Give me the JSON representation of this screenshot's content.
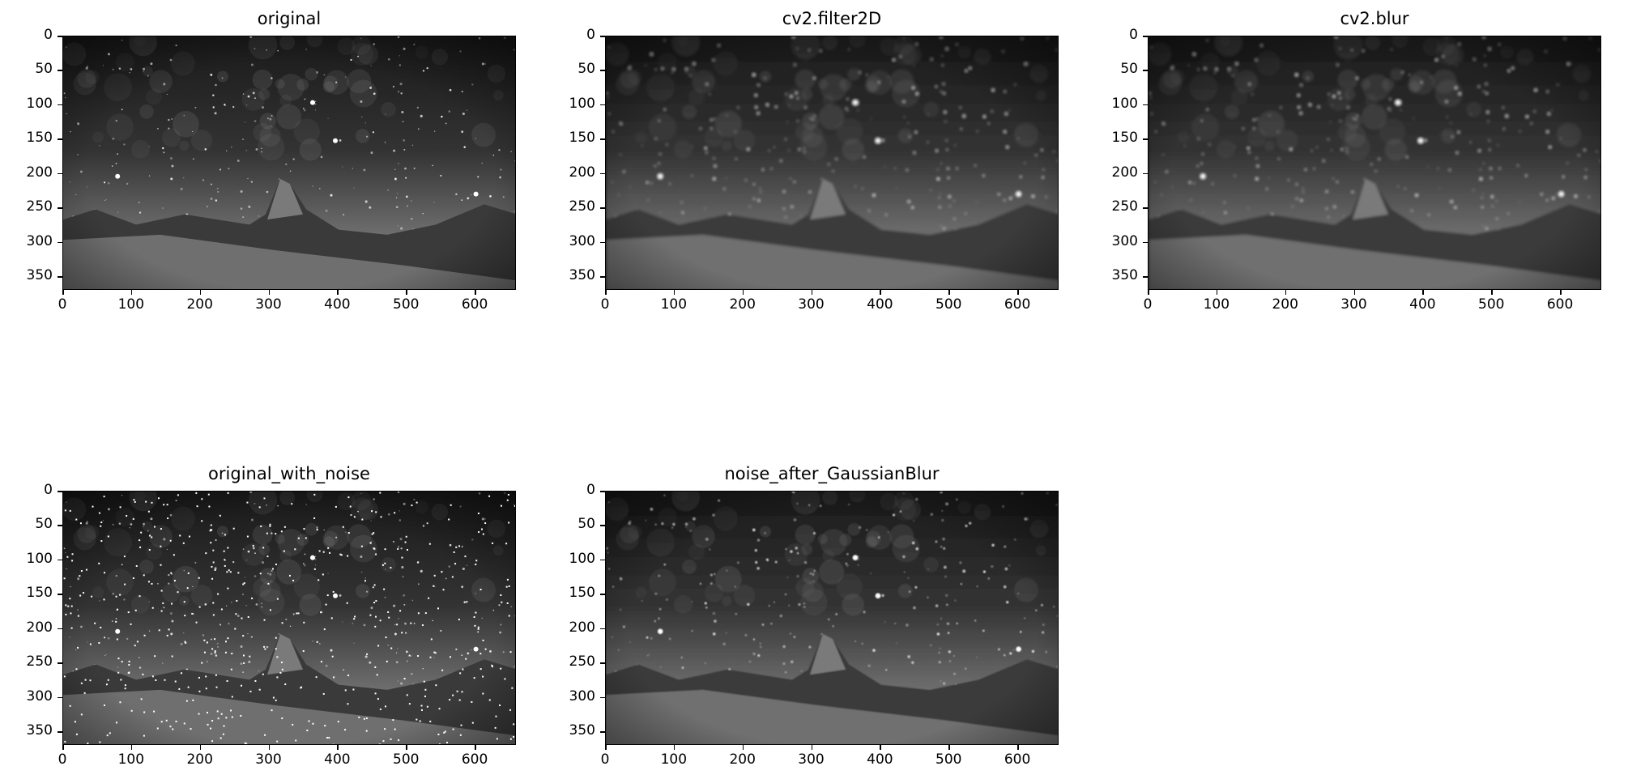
{
  "panels": [
    {
      "id": "original",
      "title": "original",
      "blur": 0,
      "noise": false
    },
    {
      "id": "filter2d",
      "title": "cv2.filter2D",
      "blur": 1.6,
      "noise": false
    },
    {
      "id": "blur",
      "title": "cv2.blur",
      "blur": 1.6,
      "noise": false
    },
    {
      "id": "original_with_noise",
      "title": "original_with_noise",
      "blur": 0,
      "noise": true
    },
    {
      "id": "noise_after_gaussianblur",
      "title": "noise_after_GaussianBlur",
      "blur": 0.9,
      "noise": false
    }
  ],
  "axes": {
    "y_ticks": [
      "0",
      "50",
      "100",
      "150",
      "200",
      "250",
      "300",
      "350"
    ],
    "x_ticks": [
      "0",
      "100",
      "200",
      "300",
      "400",
      "500",
      "600"
    ],
    "x_range": [
      0,
      660
    ],
    "y_range": [
      0,
      370
    ]
  },
  "image": {
    "subject": "grayscale night landscape: starry sky over snowy mountains with a pointed peak",
    "sky_top": "#1a1a1a",
    "sky_horizon": "#6e6e6e",
    "mountain_color": "#3a3a3a",
    "snow_color": "#9a9a9a",
    "star_color": "#ffffff"
  }
}
